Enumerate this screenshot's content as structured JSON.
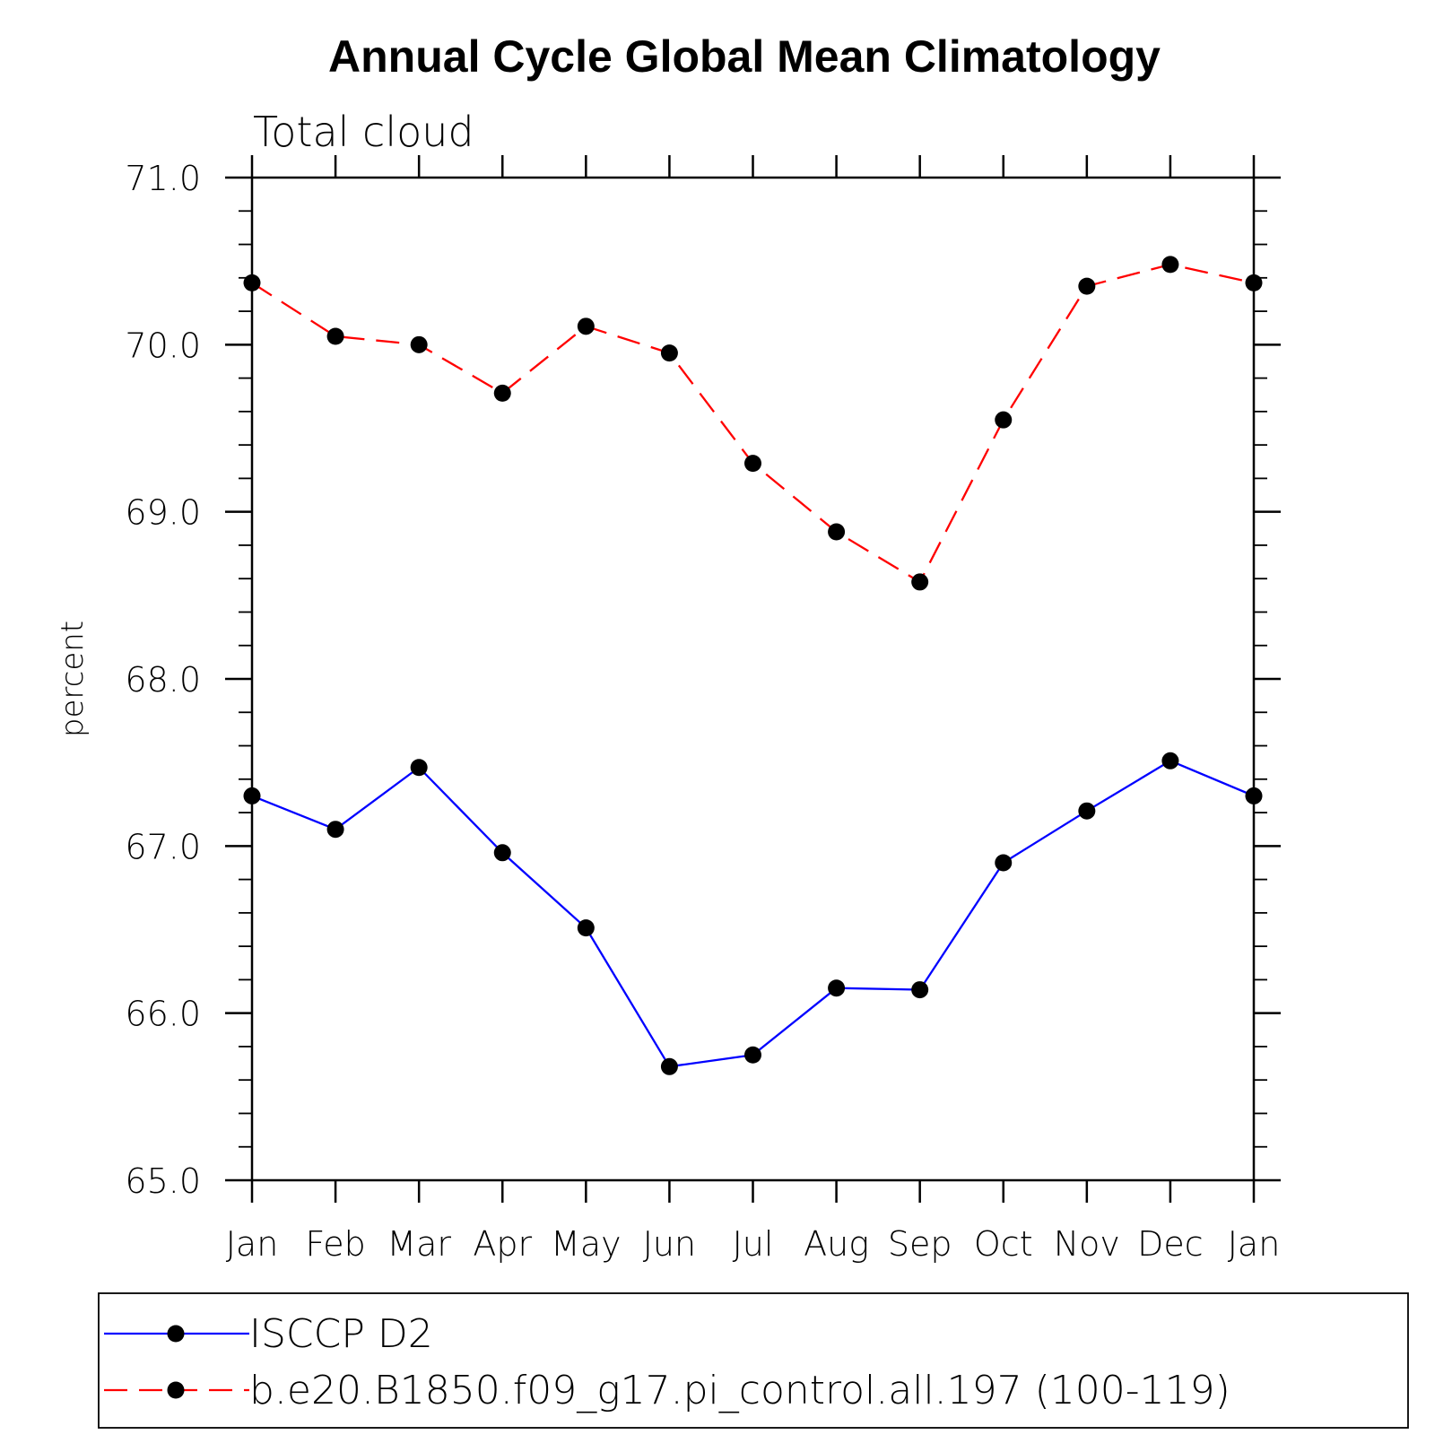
{
  "chart_data": {
    "type": "line",
    "title": "Annual Cycle Global Mean Climatology",
    "subtitle": "Total cloud",
    "xlabel": "",
    "ylabel": "percent",
    "categories": [
      "Jan",
      "Feb",
      "Mar",
      "Apr",
      "May",
      "Jun",
      "Jul",
      "Aug",
      "Sep",
      "Oct",
      "Nov",
      "Dec",
      "Jan"
    ],
    "ylim": [
      65.0,
      71.0
    ],
    "yticks": [
      "65.0",
      "66.0",
      "67.0",
      "68.0",
      "69.0",
      "70.0",
      "71.0"
    ],
    "legend_position": "bottom",
    "grid": false,
    "series": [
      {
        "name": "ISCCP D2",
        "color": "#0000ff",
        "line_style": "solid",
        "marker": "circle",
        "values": [
          67.3,
          67.1,
          67.47,
          66.96,
          66.51,
          65.68,
          65.75,
          66.15,
          66.14,
          66.9,
          67.21,
          67.51,
          67.3
        ]
      },
      {
        "name": "b.e20.B1850.f09_g17.pi_control.all.197 (100-119)",
        "color": "#ff0000",
        "line_style": "dashed",
        "marker": "circle",
        "values": [
          70.37,
          70.05,
          70.0,
          69.71,
          70.11,
          69.95,
          69.29,
          68.88,
          68.58,
          69.55,
          70.35,
          70.48,
          70.37
        ]
      }
    ]
  }
}
